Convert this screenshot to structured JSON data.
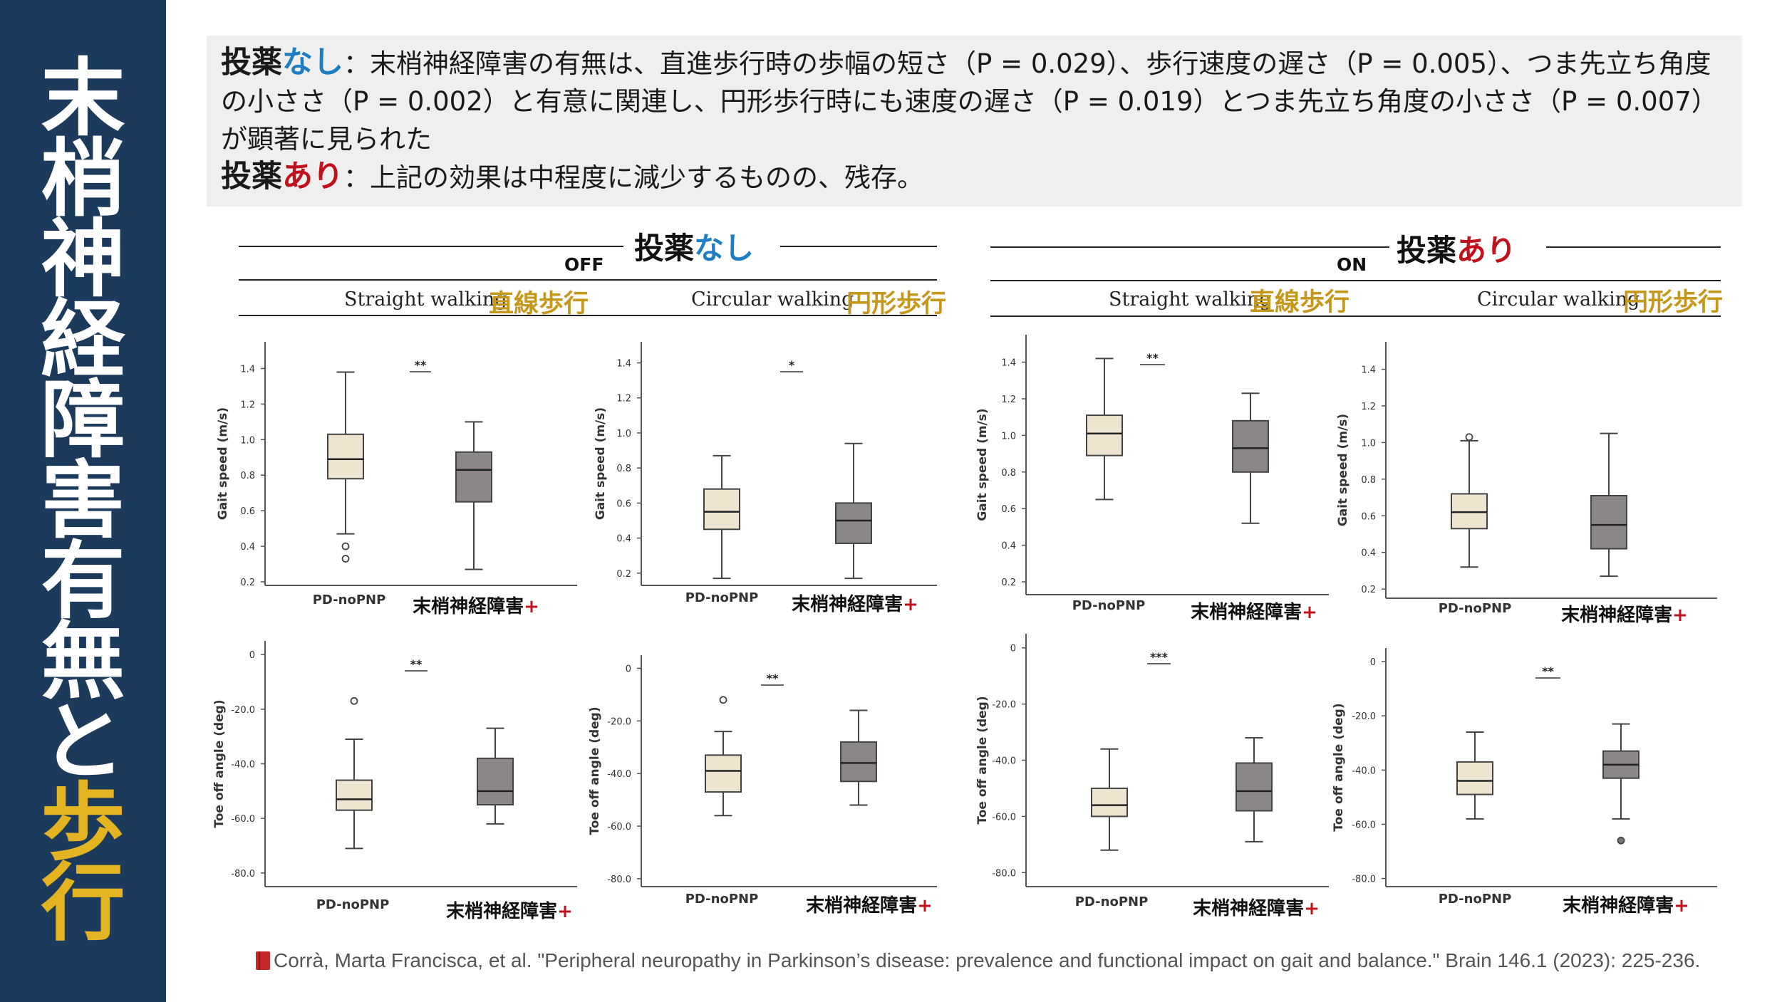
{
  "sidebar": {
    "title_chars": [
      "末",
      "梢",
      "神",
      "経",
      "障",
      "害",
      "有",
      "無",
      "と"
    ],
    "title_highlight_chars": [
      "歩",
      "行"
    ]
  },
  "summary": {
    "line1_kw_a": "投薬",
    "line1_kw_b": "なし",
    "line1_text": "：末梢神経障害の有無は、直進歩行時の歩幅の短さ（P = 0.029）、歩行速度の遅さ（P = 0.005）、つま先立ち角度の小ささ（P = 0.002）と有意に関連し、円形歩行時にも速度の遅さ（P = 0.019）とつま先立ち角度の小ささ（P = 0.007）が顕著に見られた",
    "line2_kw_a": "投薬",
    "line2_kw_b": "あり",
    "line2_text": "：上記の効果は中程度に減少するものの、残存。"
  },
  "panels": {
    "off": {
      "label_a": "投薬",
      "label_b": "なし",
      "state": "OFF",
      "straight_en": "Straight walking",
      "straight_jp": "直線歩行",
      "circular_en": "Circular walking",
      "circular_jp": "円形歩行"
    },
    "on": {
      "label_a": "投薬",
      "label_b": "あり",
      "state": "ON",
      "straight_en": "Straight walking",
      "straight_jp": "直線歩行",
      "circular_en": "Circular walking",
      "circular_jp": "円形歩行"
    }
  },
  "citation": "Corrà, Marta Francisca, et al. \"Peripheral neuropathy in Parkinson’s disease: prevalence and functional impact on gait and balance.\" Brain 146.1 (2023): 225-236.",
  "colors": {
    "sidebar": "#1b3a5c",
    "noPNP_box": "#ede5d0",
    "PNP_box": "#8c8787",
    "gold": "#c5971b",
    "blue": "#1e7ec2",
    "red": "#c0121c"
  },
  "chart_data": [
    {
      "type": "box",
      "panel": "OFF",
      "condition": "Straight walking",
      "ylabel": "Gait speed (m/s)",
      "yticks": [
        "0.2",
        "0.4",
        "0.6",
        "0.8",
        "1.0",
        "1.2",
        "1.4"
      ],
      "ylim": [
        0.18,
        1.55
      ],
      "categories": [
        "PD-noPNP",
        "末梢神経障害+"
      ],
      "significance": "**",
      "boxes": [
        {
          "min": 0.47,
          "q1": 0.78,
          "median": 0.89,
          "q3": 1.03,
          "max": 1.38,
          "outliers": [
            0.4,
            0.33
          ]
        },
        {
          "min": 0.27,
          "q1": 0.65,
          "median": 0.83,
          "q3": 0.93,
          "max": 1.1,
          "outliers": []
        }
      ]
    },
    {
      "type": "box",
      "panel": "OFF",
      "condition": "Circular walking",
      "ylabel": "Gait speed (m/s)",
      "yticks": [
        "0.2",
        "0.4",
        "0.6",
        "0.8",
        "1.0",
        "1.2",
        "1.4"
      ],
      "ylim": [
        0.13,
        1.52
      ],
      "categories": [
        "PD-noPNP",
        "末梢神経障害+"
      ],
      "significance": "*",
      "boxes": [
        {
          "min": 0.17,
          "q1": 0.45,
          "median": 0.55,
          "q3": 0.68,
          "max": 0.87,
          "outliers": []
        },
        {
          "min": 0.17,
          "q1": 0.37,
          "median": 0.5,
          "q3": 0.6,
          "max": 0.94,
          "outliers": []
        }
      ]
    },
    {
      "type": "box",
      "panel": "ON",
      "condition": "Straight walking",
      "ylabel": "Gait speed (m/s)",
      "yticks": [
        "0.2",
        "0.4",
        "0.6",
        "0.8",
        "1.0",
        "1.2",
        "1.4"
      ],
      "ylim": [
        0.13,
        1.55
      ],
      "categories": [
        "PD-noPNP",
        "末梢神経障害+"
      ],
      "significance": "**",
      "boxes": [
        {
          "min": 0.65,
          "q1": 0.89,
          "median": 1.01,
          "q3": 1.11,
          "max": 1.42,
          "outliers": []
        },
        {
          "min": 0.52,
          "q1": 0.8,
          "median": 0.93,
          "q3": 1.08,
          "max": 1.23,
          "outliers": []
        }
      ]
    },
    {
      "type": "box",
      "panel": "ON",
      "condition": "Circular walking",
      "ylabel": "Gait speed (m/s)",
      "yticks": [
        "0.2",
        "0.4",
        "0.6",
        "0.8",
        "1.0",
        "1.2",
        "1.4"
      ],
      "ylim": [
        0.15,
        1.55
      ],
      "categories": [
        "PD-noPNP",
        "末梢神経障害+"
      ],
      "significance": "",
      "boxes": [
        {
          "min": 0.32,
          "q1": 0.53,
          "median": 0.62,
          "q3": 0.72,
          "max": 1.01,
          "outliers": [
            1.03
          ]
        },
        {
          "min": 0.27,
          "q1": 0.42,
          "median": 0.55,
          "q3": 0.71,
          "max": 1.05,
          "outliers": []
        }
      ]
    },
    {
      "type": "box",
      "panel": "OFF",
      "condition": "Straight walking",
      "ylabel": "Toe off angle (deg)",
      "yticks": [
        "-80.0",
        "-60.0",
        "-40.0",
        "-20.0",
        "0"
      ],
      "ylim": [
        -85,
        5
      ],
      "categories": [
        "PD-noPNP",
        "末梢神経障害+"
      ],
      "significance": "**",
      "boxes": [
        {
          "min": -71,
          "q1": -57,
          "median": -53,
          "q3": -46,
          "max": -31,
          "outliers": [
            -17
          ]
        },
        {
          "min": -62,
          "q1": -55,
          "median": -50,
          "q3": -38,
          "max": -27,
          "outliers": []
        }
      ]
    },
    {
      "type": "box",
      "panel": "OFF",
      "condition": "Circular walking",
      "ylabel": "Toe off angle (deg)",
      "yticks": [
        "-80.0",
        "-60.0",
        "-40.0",
        "-20.0",
        "0"
      ],
      "ylim": [
        -83,
        5
      ],
      "categories": [
        "PD-noPNP",
        "末梢神経障害+"
      ],
      "significance": "**",
      "boxes": [
        {
          "min": -56,
          "q1": -47,
          "median": -39,
          "q3": -33,
          "max": -24,
          "outliers": [
            -12
          ]
        },
        {
          "min": -52,
          "q1": -43,
          "median": -36,
          "q3": -28,
          "max": -16,
          "outliers": []
        }
      ]
    },
    {
      "type": "box",
      "panel": "ON",
      "condition": "Straight walking",
      "ylabel": "Toe off angle (deg)",
      "yticks": [
        "-80.0",
        "-60.0",
        "-40.0",
        "-20.0",
        "0"
      ],
      "ylim": [
        -85,
        5
      ],
      "categories": [
        "PD-noPNP",
        "末梢神経障害+"
      ],
      "significance": "***",
      "boxes": [
        {
          "min": -72,
          "q1": -60,
          "median": -56,
          "q3": -50,
          "max": -36,
          "outliers": []
        },
        {
          "min": -69,
          "q1": -58,
          "median": -51,
          "q3": -41,
          "max": -32,
          "outliers": []
        }
      ]
    },
    {
      "type": "box",
      "panel": "ON",
      "condition": "Circular walking",
      "ylabel": "Toe off angle (deg)",
      "yticks": [
        "-80.0",
        "-60.0",
        "-40.0",
        "-20.0",
        "0"
      ],
      "ylim": [
        -83,
        5
      ],
      "categories": [
        "PD-noPNP",
        "末梢神経障害+"
      ],
      "significance": "**",
      "boxes": [
        {
          "min": -58,
          "q1": -49,
          "median": -44,
          "q3": -37,
          "max": -26,
          "outliers": []
        },
        {
          "min": -58,
          "q1": -43,
          "median": -38,
          "q3": -33,
          "max": -23,
          "outliers": [
            -66
          ]
        }
      ]
    }
  ]
}
